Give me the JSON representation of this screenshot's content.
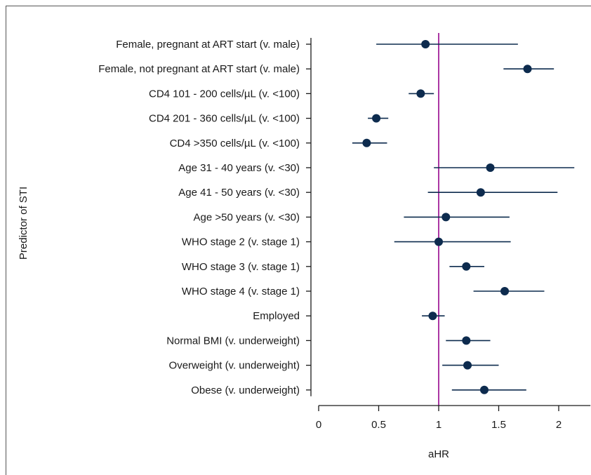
{
  "chart_data": {
    "type": "scatter",
    "subtype": "forest-plot",
    "xlabel": "aHR",
    "ylabel": "Predictor of STI",
    "xlim": [
      0,
      2.2
    ],
    "xticks": [
      "0",
      "0.5",
      "1",
      "1.5",
      "2"
    ],
    "reference_line": 1,
    "colors": {
      "point": "#0d2b4e",
      "ci": "#0d2b4e",
      "reference": "#a0209a",
      "axis": "#1a1a1a"
    },
    "grid": false,
    "rows": [
      {
        "label": "Female, pregnant at ART start (v. male)",
        "ahr": 0.89,
        "lower": 0.48,
        "upper": 1.66
      },
      {
        "label": "Female, not pregnant at ART start (v. male)",
        "ahr": 1.74,
        "lower": 1.54,
        "upper": 1.96
      },
      {
        "label": "CD4 101 - 200 cells/µL (v. <100)",
        "ahr": 0.85,
        "lower": 0.75,
        "upper": 0.96
      },
      {
        "label": "CD4 201 - 360 cells/µL (v. <100)",
        "ahr": 0.48,
        "lower": 0.41,
        "upper": 0.58
      },
      {
        "label": "CD4 >350 cells/µL (v. <100)",
        "ahr": 0.4,
        "lower": 0.28,
        "upper": 0.57
      },
      {
        "label": "Age 31 - 40 years (v. <30)",
        "ahr": 1.43,
        "lower": 0.96,
        "upper": 2.13
      },
      {
        "label": "Age 41 - 50 years (v. <30)",
        "ahr": 1.35,
        "lower": 0.91,
        "upper": 1.99
      },
      {
        "label": "Age >50 years (v. <30)",
        "ahr": 1.06,
        "lower": 0.71,
        "upper": 1.59
      },
      {
        "label": "WHO stage 2 (v. stage 1)",
        "ahr": 1.0,
        "lower": 0.63,
        "upper": 1.6
      },
      {
        "label": "WHO stage 3 (v. stage 1)",
        "ahr": 1.23,
        "lower": 1.09,
        "upper": 1.38
      },
      {
        "label": "WHO stage 4 (v. stage 1)",
        "ahr": 1.55,
        "lower": 1.29,
        "upper": 1.88
      },
      {
        "label": "Employed",
        "ahr": 0.95,
        "lower": 0.86,
        "upper": 1.05
      },
      {
        "label": "Normal BMI (v. underweight)",
        "ahr": 1.23,
        "lower": 1.06,
        "upper": 1.43
      },
      {
        "label": "Overweight (v. underweight)",
        "ahr": 1.24,
        "lower": 1.03,
        "upper": 1.5
      },
      {
        "label": "Obese (v. underweight)",
        "ahr": 1.38,
        "lower": 1.11,
        "upper": 1.73
      }
    ]
  }
}
